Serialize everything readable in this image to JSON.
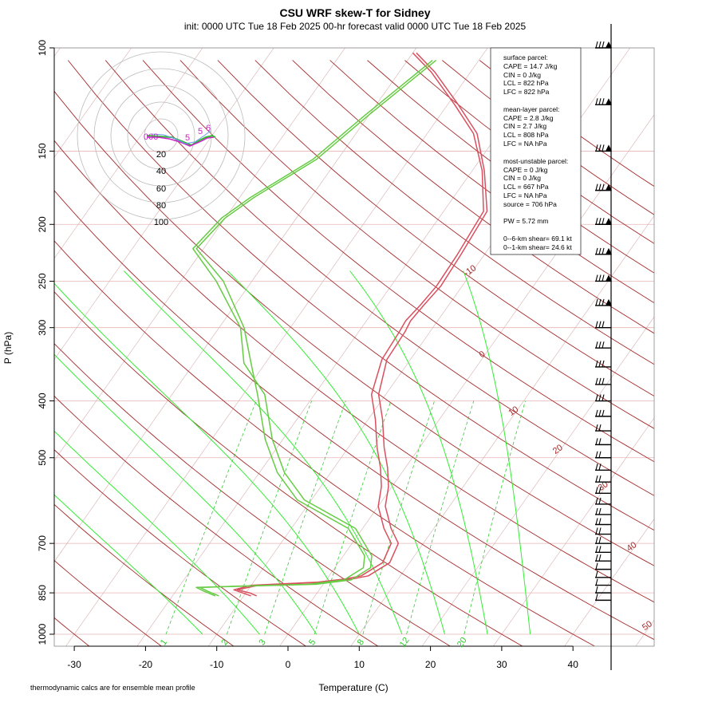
{
  "title": "CSU WRF skew-T for Sidney",
  "subtitle": "init: 0000 UTC Tue 18 Feb 2025     00-hr forecast valid 0000 UTC Tue 18 Feb 2025",
  "footnote": "thermodynamic calcs are for ensemble mean profile",
  "stats": {
    "surface_header": "surface parcel:",
    "surface": [
      "CAPE = 14.7 J/kg",
      "CIN = 0 J/kg",
      "LCL = 822 hPa",
      "LFC = 822 hPa"
    ],
    "mixed_header": "mean-layer parcel:",
    "mixed": [
      "CAPE = 2.8 J/kg",
      "CIN = 2.7 J/kg",
      "LCL = 808 hPa",
      "LFC = NA hPa"
    ],
    "mu_header": "most-unstable parcel:",
    "mu": [
      "CAPE = 0 J/kg",
      "CIN = 0 J/kg",
      "LCL = 667 hPa",
      "LFC = NA hPa",
      "source = 706 hPa"
    ],
    "pw": "PW =   5.72 mm",
    "shear6": "0--6-km shear= 69.1 kt",
    "shear1": "0--1-km shear= 24.6 kt"
  },
  "hodograph": {
    "ring_labels": [
      "20",
      "40",
      "60",
      "80",
      "100"
    ]
  },
  "chart_data": {
    "type": "line",
    "title": "CSU WRF skew-T for Sidney",
    "xlabel": "Temperature (C)",
    "ylabel": "P (hPa)",
    "x_ticks": [
      "-30",
      "-20",
      "-10",
      "0",
      "10",
      "20",
      "30",
      "40"
    ],
    "y_ticks": [
      "100",
      "150",
      "200",
      "250",
      "300",
      "400",
      "500",
      "700",
      "850",
      "1000"
    ],
    "xlim": [
      -33,
      45
    ],
    "ylim": [
      1050,
      100
    ],
    "y_scale": "log",
    "isotherm_labels": [
      "-10",
      "0",
      "10",
      "20",
      "30",
      "40",
      "50"
    ],
    "mixing_ratio_labels": [
      "1",
      "2",
      "3",
      "5",
      "8",
      "12",
      "20"
    ],
    "colors": {
      "temperature": "#d9505f",
      "dewpoint": "#66cc44",
      "dry_adiabat": "#a52a2a",
      "moist_adiabat": "#33ee33",
      "mixing_ratio": "#33cc33",
      "isobar": "#e8b4b4",
      "isotherm": "#d8b0b0",
      "wind_barb": "#000000",
      "hodograph_surface": "#cc22cc"
    },
    "series": [
      {
        "key": "temperature_mean",
        "points": [
          [
            -8.2,
            860
          ],
          [
            -9.5,
            850
          ],
          [
            -11.5,
            840
          ],
          [
            -9,
            825
          ],
          [
            0,
            815
          ],
          [
            3.5,
            805
          ],
          [
            5.5,
            795
          ],
          [
            7.2,
            755
          ],
          [
            6.5,
            700
          ],
          [
            4,
            660
          ],
          [
            1,
            605
          ],
          [
            -0.5,
            560
          ],
          [
            -2.5,
            520
          ],
          [
            -5,
            480
          ],
          [
            -8,
            430
          ],
          [
            -11,
            390
          ],
          [
            -13.3,
            340
          ],
          [
            -13.5,
            305
          ],
          [
            -13.8,
            292
          ],
          [
            -13.5,
            275
          ],
          [
            -13,
            255
          ],
          [
            -13.3,
            225
          ],
          [
            -13.9,
            190
          ],
          [
            -18.3,
            162
          ],
          [
            -23,
            140
          ],
          [
            -28.5,
            125
          ],
          [
            -35,
            110
          ],
          [
            -39.5,
            102
          ]
        ]
      },
      {
        "key": "temperature_member",
        "points": [
          [
            -9,
            860
          ],
          [
            -10.5,
            850
          ],
          [
            -12,
            840
          ],
          [
            -10,
            825
          ],
          [
            -1,
            815
          ],
          [
            2.5,
            805
          ],
          [
            4.5,
            795
          ],
          [
            6.2,
            755
          ],
          [
            5.5,
            700
          ],
          [
            3,
            660
          ],
          [
            0,
            605
          ],
          [
            -1.5,
            560
          ],
          [
            -3.5,
            520
          ],
          [
            -6,
            480
          ],
          [
            -9,
            430
          ],
          [
            -12,
            390
          ],
          [
            -14,
            340
          ],
          [
            -14.3,
            305
          ],
          [
            -14.5,
            292
          ],
          [
            -14,
            275
          ],
          [
            -13.6,
            255
          ],
          [
            -13.8,
            225
          ],
          [
            -14.4,
            190
          ],
          [
            -18.6,
            162
          ],
          [
            -23.5,
            140
          ],
          [
            -29,
            125
          ],
          [
            -35.5,
            110
          ],
          [
            -40,
            102
          ]
        ]
      },
      {
        "key": "dewpoint_mean",
        "points": [
          [
            -13.5,
            860
          ],
          [
            -15.5,
            845
          ],
          [
            -17,
            832
          ],
          [
            -12,
            828
          ],
          [
            -2,
            822
          ],
          [
            2.5,
            808
          ],
          [
            4,
            770
          ],
          [
            3,
            735
          ],
          [
            -2,
            660
          ],
          [
            -12,
            590
          ],
          [
            -17.5,
            530
          ],
          [
            -22.5,
            465
          ],
          [
            -28,
            390
          ],
          [
            -32,
            345
          ],
          [
            -36.5,
            300
          ],
          [
            -44,
            250
          ],
          [
            -51,
            220
          ],
          [
            -50,
            195
          ],
          [
            -48,
            180
          ],
          [
            -43,
            155
          ],
          [
            -40,
            130
          ],
          [
            -36,
            105
          ]
        ]
      },
      {
        "key": "dewpoint_member",
        "points": [
          [
            -14,
            860
          ],
          [
            -16,
            845
          ],
          [
            -17.5,
            832
          ],
          [
            -11,
            828
          ],
          [
            -1,
            822
          ],
          [
            3.5,
            808
          ],
          [
            5,
            770
          ],
          [
            4,
            735
          ],
          [
            -1,
            660
          ],
          [
            -11,
            590
          ],
          [
            -16.5,
            530
          ],
          [
            -21.5,
            465
          ],
          [
            -27,
            390
          ],
          [
            -33,
            345
          ],
          [
            -37,
            300
          ],
          [
            -45,
            250
          ],
          [
            -51.5,
            220
          ],
          [
            -50.5,
            195
          ],
          [
            -48.5,
            180
          ],
          [
            -43.5,
            155
          ],
          [
            -40.5,
            130
          ],
          [
            -36.5,
            105
          ]
        ]
      }
    ],
    "wind_profile_levels_hPa": [
      100,
      125,
      150,
      175,
      200,
      225,
      250,
      275,
      300,
      325,
      350,
      375,
      400,
      425,
      450,
      475,
      500,
      525,
      550,
      575,
      600,
      625,
      650,
      675,
      700,
      725,
      750,
      775,
      800,
      825,
      850,
      875
    ]
  }
}
